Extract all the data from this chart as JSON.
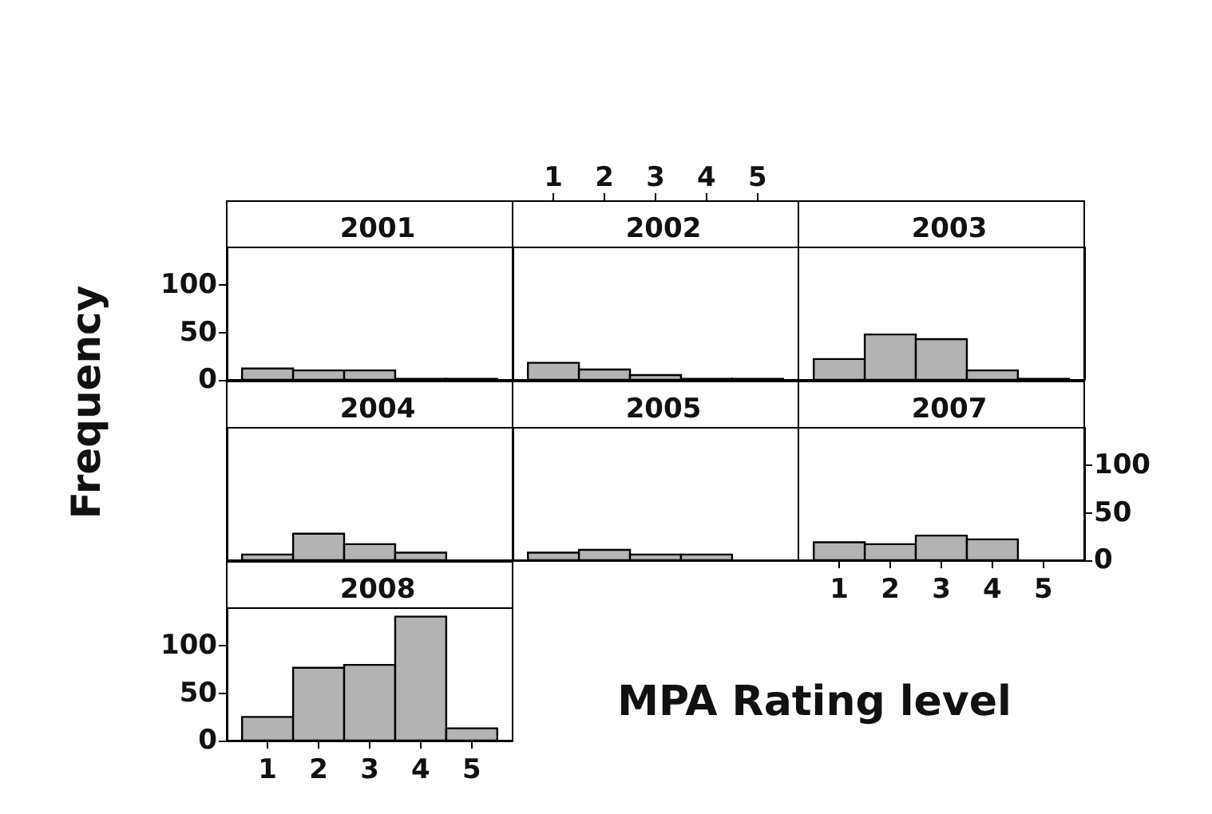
{
  "chart_data": [
    {
      "type": "histogram",
      "title": "2001",
      "ylabel": "Frequency",
      "bins": [
        0.5,
        1.5,
        2.5,
        3.5,
        4.5,
        5.5
      ],
      "values": [
        12,
        10,
        10,
        1,
        1
      ],
      "color": "#b3b3b3",
      "xlim": [
        0.2,
        5.8
      ],
      "xticks": [
        1,
        2,
        3,
        4,
        5
      ],
      "ylim": [
        0,
        140
      ],
      "yticks": [
        0,
        50,
        100
      ],
      "tick_labels": "y"
    },
    {
      "type": "histogram",
      "title": "2002",
      "bins": [
        0.5,
        1.5,
        2.5,
        3.5,
        4.5,
        5.5
      ],
      "values": [
        18,
        11,
        5,
        1,
        1
      ],
      "color": "#b3b3b3",
      "xlim": [
        0.2,
        5.8
      ],
      "xticks": [
        1,
        2,
        3,
        4,
        5
      ],
      "x2lim": [
        0.2,
        5.8
      ],
      "x2ticks": [
        1,
        2,
        3,
        4,
        5
      ],
      "ylim": [
        0,
        140
      ],
      "yticks": [
        0,
        50,
        100
      ],
      "tick_labels": false
    },
    {
      "type": "histogram",
      "title": "2003",
      "bins": [
        0.5,
        1.5,
        2.5,
        3.5,
        4.5,
        5.5
      ],
      "values": [
        22,
        48,
        43,
        10,
        1
      ],
      "color": "#b3b3b3",
      "xlim": [
        0.2,
        5.8
      ],
      "xticks": [
        1,
        2,
        3,
        4,
        5
      ],
      "ylim": [
        0,
        140
      ],
      "yticks": [
        0,
        50,
        100
      ],
      "tick_labels": false
    },
    {
      "type": "histogram",
      "title": "2004",
      "bins": [
        0.5,
        1.5,
        2.5,
        3.5,
        4.5,
        5.5
      ],
      "values": [
        6,
        28,
        17,
        8,
        0
      ],
      "color": "#b3b3b3",
      "xlim": [
        0.2,
        5.8
      ],
      "xticks": [
        1,
        2,
        3,
        4,
        5
      ],
      "ylim": [
        0,
        140
      ],
      "yticks": [
        0,
        50,
        100
      ],
      "tick_labels": false
    },
    {
      "type": "histogram",
      "title": "2005",
      "bins": [
        0.5,
        1.5,
        2.5,
        3.5,
        4.5,
        5.5
      ],
      "values": [
        8,
        11,
        6,
        6,
        0
      ],
      "color": "#b3b3b3",
      "xlim": [
        0.2,
        5.8
      ],
      "xticks": [
        1,
        2,
        3,
        4,
        5
      ],
      "ylim": [
        0,
        140
      ],
      "yticks": [
        0,
        50,
        100
      ],
      "tick_labels": false
    },
    {
      "type": "histogram",
      "title": "2007",
      "bins": [
        0.5,
        1.5,
        2.5,
        3.5,
        4.5,
        5.5
      ],
      "values": [
        19,
        17,
        26,
        22,
        0
      ],
      "color": "#b3b3b3",
      "xlim": [
        0.2,
        5.8
      ],
      "xticks": [
        1,
        2,
        3,
        4,
        5
      ],
      "ylim": [
        0,
        140
      ],
      "yticks": [
        0,
        50,
        100
      ]
    },
    {
      "type": "histogram",
      "title": "2008",
      "xlabel": "MPA Rating level",
      "bins": [
        0.5,
        1.5,
        2.5,
        3.5,
        4.5,
        5.5
      ],
      "values": [
        25,
        77,
        80,
        131,
        13
      ],
      "color": "#b3b3b3",
      "xlim": [
        0.2,
        5.8
      ],
      "xticks": [
        1,
        2,
        3,
        4,
        5
      ],
      "ylim": [
        0,
        140
      ],
      "yticks": [
        0,
        50,
        100
      ]
    }
  ]
}
